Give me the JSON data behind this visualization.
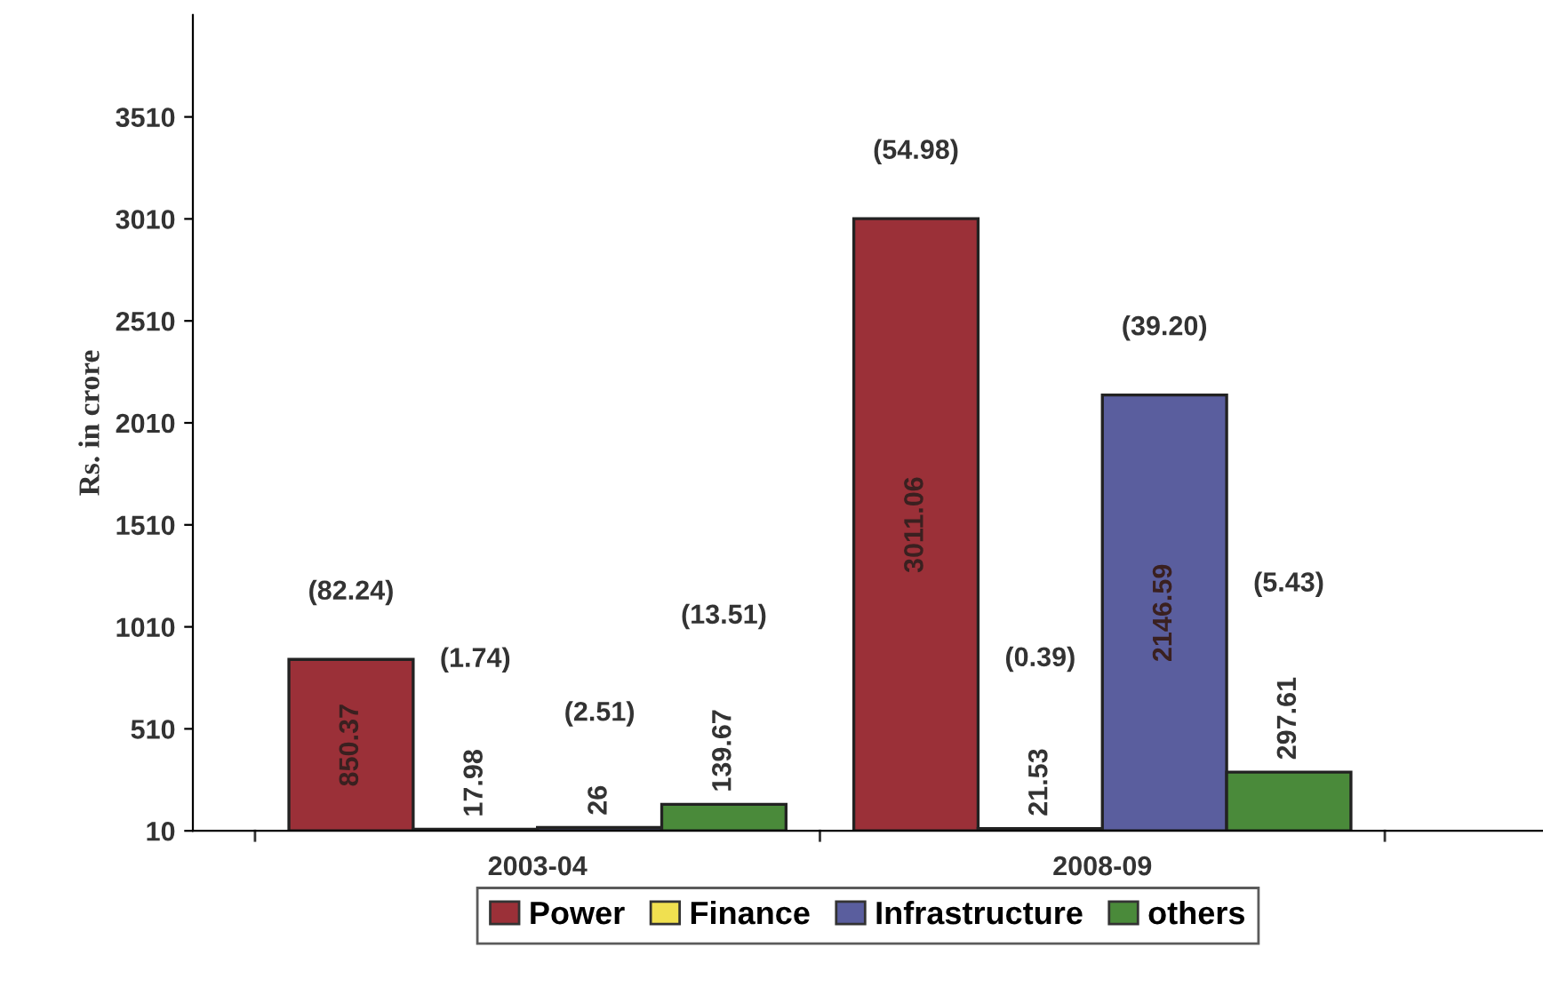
{
  "chart_data": {
    "type": "bar",
    "ylabel": "Rs. in crore",
    "categories": [
      "2003-04",
      "2008-09"
    ],
    "series": [
      {
        "name": "Power",
        "color": "#9b3038",
        "values": [
          850.37,
          3011.06
        ]
      },
      {
        "name": "Finance",
        "color": "#f0e050",
        "values": [
          17.98,
          21.53
        ]
      },
      {
        "name": "Infrastructure",
        "color": "#5a5e9e",
        "values": [
          26,
          2146.59
        ]
      },
      {
        "name": "others",
        "color": "#4a8a3a",
        "values": [
          139.67,
          297.61
        ]
      }
    ],
    "data_labels": true,
    "annotations": [
      "(82.24)",
      "(1.74)",
      "(2.51)",
      "(13.51)",
      "(54.98)",
      "(0.39)",
      "(39.20)",
      "(5.43)"
    ],
    "ylim": [
      10,
      4010
    ],
    "yticks": [
      10,
      510,
      1010,
      1510,
      2010,
      2510,
      3010,
      3510
    ],
    "grid": false,
    "legend": "bottom"
  }
}
